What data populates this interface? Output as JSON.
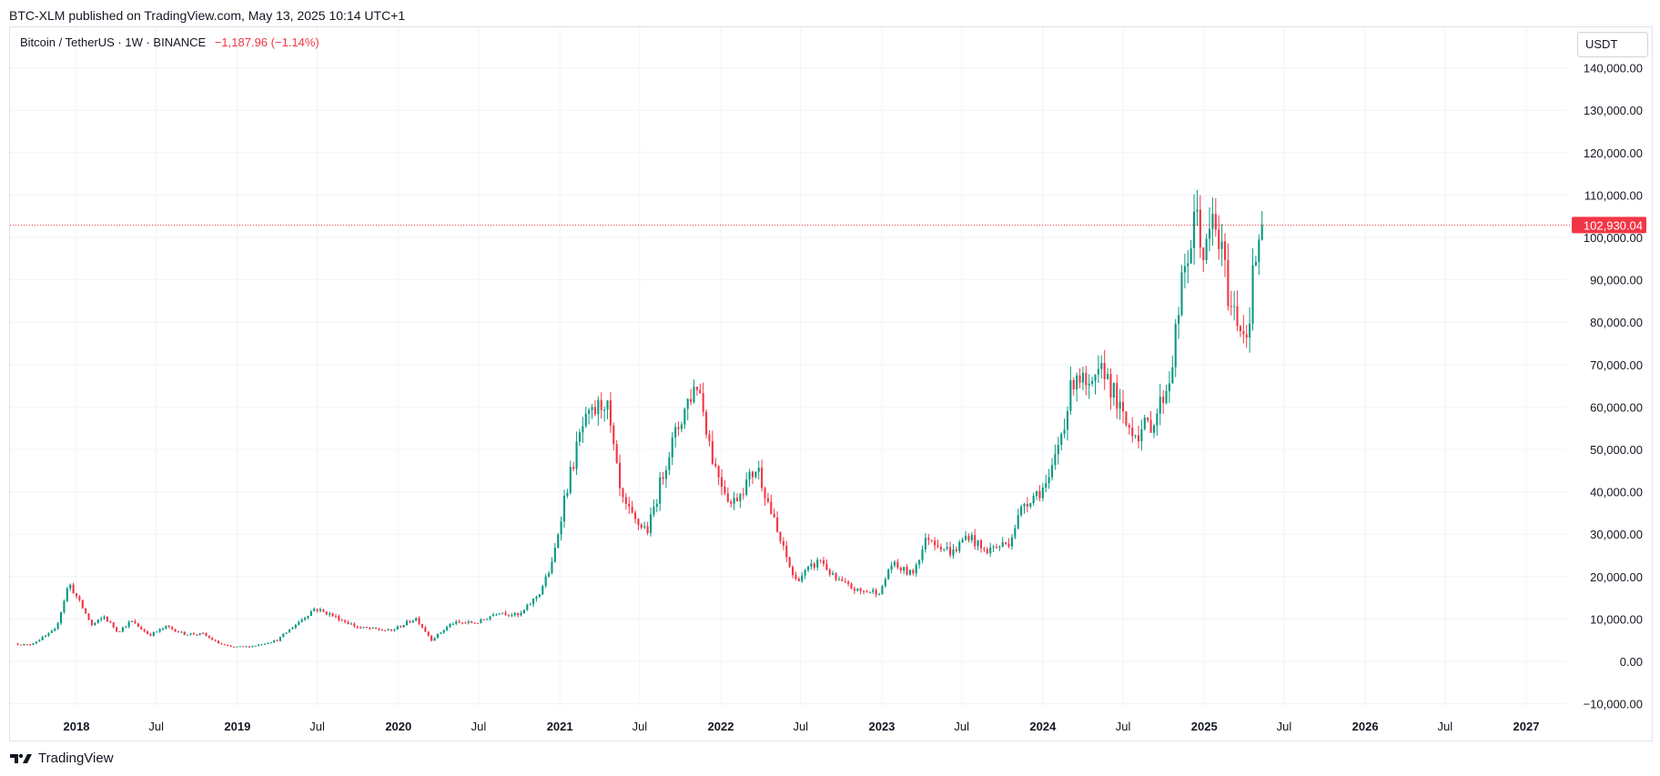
{
  "header": {
    "published_line": "BTC-XLM published on TradingView.com, May 13, 2025 10:14 UTC+1"
  },
  "legend": {
    "symbol": "Bitcoin / TetherUS · 1W · BINANCE",
    "change": "−1,187.96 (−1.14%)"
  },
  "unit_button": "USDT",
  "footer": {
    "brand": "TradingView",
    "logo": "tradingview-logo-icon"
  },
  "colors": {
    "up": "#089981",
    "down": "#f23645",
    "grid": "#f0f3fa",
    "price_line": "#f23645"
  },
  "chart_data": {
    "type": "candlestick",
    "interval": "1W",
    "ylim": [
      -15000,
      143000
    ],
    "x_range": [
      "2017-08-15",
      "2027-06-01"
    ],
    "y_ticks": [
      -10000,
      0,
      10000,
      20000,
      30000,
      40000,
      50000,
      60000,
      70000,
      80000,
      90000,
      100000,
      110000,
      120000,
      130000,
      140000
    ],
    "y_tick_labels": [
      "−10,000.00",
      "0.00",
      "10,000.00",
      "20,000.00",
      "30,000.00",
      "40,000.00",
      "50,000.00",
      "60,000.00",
      "70,000.00",
      "80,000.00",
      "90,000.00",
      "100,000.00",
      "110,000.00",
      "120,000.00",
      "130,000.00",
      "140,000.00"
    ],
    "x_ticks": [
      {
        "date": "2018-01-01",
        "label": "2018"
      },
      {
        "date": "2018-07-01",
        "label": "Jul"
      },
      {
        "date": "2019-01-01",
        "label": "2019"
      },
      {
        "date": "2019-07-01",
        "label": "Jul"
      },
      {
        "date": "2020-01-01",
        "label": "2020"
      },
      {
        "date": "2020-07-01",
        "label": "Jul"
      },
      {
        "date": "2021-01-01",
        "label": "2021"
      },
      {
        "date": "2021-07-01",
        "label": "Jul"
      },
      {
        "date": "2022-01-01",
        "label": "2022"
      },
      {
        "date": "2022-07-01",
        "label": "Jul"
      },
      {
        "date": "2023-01-01",
        "label": "2023"
      },
      {
        "date": "2023-07-01",
        "label": "Jul"
      },
      {
        "date": "2024-01-01",
        "label": "2024"
      },
      {
        "date": "2024-07-01",
        "label": "Jul"
      },
      {
        "date": "2025-01-01",
        "label": "2025"
      },
      {
        "date": "2025-07-01",
        "label": "Jul"
      },
      {
        "date": "2026-01-01",
        "label": "2026"
      },
      {
        "date": "2026-07-01",
        "label": "Jul"
      },
      {
        "date": "2027-01-01",
        "label": "2027"
      }
    ],
    "last_price": 102930.04,
    "last_price_label": "102,930.04",
    "grid": true,
    "close_path": [
      [
        "2017-08-14",
        4200
      ],
      [
        "2017-09-15",
        3800
      ],
      [
        "2017-10-15",
        5500
      ],
      [
        "2017-11-15",
        7500
      ],
      [
        "2017-12-15",
        18500
      ],
      [
        "2018-01-05",
        14500
      ],
      [
        "2018-02-05",
        8500
      ],
      [
        "2018-03-05",
        10500
      ],
      [
        "2018-04-05",
        7000
      ],
      [
        "2018-05-05",
        9500
      ],
      [
        "2018-06-15",
        6200
      ],
      [
        "2018-07-25",
        8200
      ],
      [
        "2018-09-01",
        6500
      ],
      [
        "2018-10-15",
        6400
      ],
      [
        "2018-11-20",
        4200
      ],
      [
        "2018-12-15",
        3400
      ],
      [
        "2019-02-01",
        3500
      ],
      [
        "2019-04-01",
        5000
      ],
      [
        "2019-06-25",
        12500
      ],
      [
        "2019-08-01",
        11000
      ],
      [
        "2019-10-01",
        8000
      ],
      [
        "2019-12-15",
        7200
      ],
      [
        "2020-02-10",
        10200
      ],
      [
        "2020-03-16",
        5100
      ],
      [
        "2020-05-01",
        9000
      ],
      [
        "2020-07-01",
        9200
      ],
      [
        "2020-08-15",
        11800
      ],
      [
        "2020-10-01",
        10700
      ],
      [
        "2020-11-15",
        16000
      ],
      [
        "2020-12-15",
        23000
      ],
      [
        "2021-01-10",
        38000
      ],
      [
        "2021-02-20",
        55000
      ],
      [
        "2021-04-15",
        62000
      ],
      [
        "2021-05-20",
        38000
      ],
      [
        "2021-06-20",
        33000
      ],
      [
        "2021-07-20",
        31000
      ],
      [
        "2021-09-01",
        48000
      ],
      [
        "2021-10-20",
        62000
      ],
      [
        "2021-11-10",
        66000
      ],
      [
        "2021-12-15",
        47000
      ],
      [
        "2022-01-25",
        37000
      ],
      [
        "2022-03-25",
        46000
      ],
      [
        "2022-05-10",
        30000
      ],
      [
        "2022-06-18",
        19000
      ],
      [
        "2022-08-15",
        24000
      ],
      [
        "2022-09-15",
        19500
      ],
      [
        "2022-11-09",
        16500
      ],
      [
        "2022-12-31",
        16500
      ],
      [
        "2023-01-20",
        23000
      ],
      [
        "2023-03-10",
        20500
      ],
      [
        "2023-04-15",
        29500
      ],
      [
        "2023-06-10",
        25500
      ],
      [
        "2023-07-15",
        30000
      ],
      [
        "2023-08-20",
        26000
      ],
      [
        "2023-10-15",
        28000
      ],
      [
        "2023-11-20",
        37500
      ],
      [
        "2024-01-15",
        42000
      ],
      [
        "2024-02-28",
        61000
      ],
      [
        "2024-03-15",
        69000
      ],
      [
        "2024-04-15",
        63000
      ],
      [
        "2024-05-20",
        69000
      ],
      [
        "2024-07-05",
        56000
      ],
      [
        "2024-08-05",
        54000
      ],
      [
        "2024-09-10",
        57000
      ],
      [
        "2024-10-15",
        67000
      ],
      [
        "2024-11-12",
        89000
      ],
      [
        "2024-12-16",
        106000
      ],
      [
        "2025-01-01",
        94000
      ],
      [
        "2025-01-20",
        104000
      ],
      [
        "2025-02-10",
        96000
      ],
      [
        "2025-03-01",
        84000
      ],
      [
        "2025-04-08",
        77000
      ],
      [
        "2025-04-25",
        94000
      ],
      [
        "2025-05-12",
        102930
      ]
    ]
  }
}
